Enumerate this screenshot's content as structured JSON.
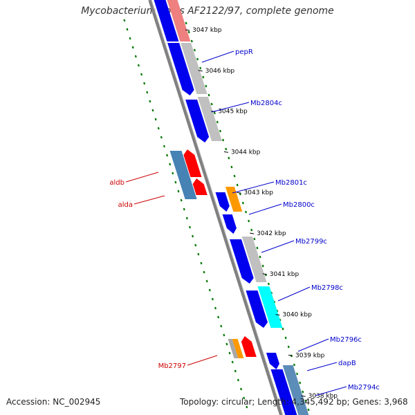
{
  "title": "Mycobacterium bovis AF2122/97, complete genome",
  "footer": {
    "accession": "Accession: NC_002945",
    "topology": "Topology: circular; Length: 4,345,492 bp; Genes: 3,968"
  },
  "ticks": [
    {
      "label": "3047 kbp",
      "kbp": 3047
    },
    {
      "label": "3046 kbp",
      "kbp": 3046
    },
    {
      "label": "3045 kbp",
      "kbp": 3045
    },
    {
      "label": "3044 kbp",
      "kbp": 3044
    },
    {
      "label": "3043 kbp",
      "kbp": 3043
    },
    {
      "label": "3042 kbp",
      "kbp": 3042
    },
    {
      "label": "3041 kbp",
      "kbp": 3041
    },
    {
      "label": "3040 kbp",
      "kbp": 3040
    },
    {
      "label": "3039 kbp",
      "kbp": 3039
    },
    {
      "label": "3038 kbp",
      "kbp": 3038
    }
  ],
  "labels": [
    {
      "text": "pepR",
      "side": "right",
      "color": "#0000cc"
    },
    {
      "text": "Mb2804c",
      "side": "right",
      "color": "#0000cc"
    },
    {
      "text": "aldb",
      "side": "left",
      "color": "#cc0000"
    },
    {
      "text": "alda",
      "side": "left",
      "color": "#cc0000"
    },
    {
      "text": "Mb2801c",
      "side": "right",
      "color": "#0000cc"
    },
    {
      "text": "Mb2800c",
      "side": "right",
      "color": "#0000cc"
    },
    {
      "text": "Mb2799c",
      "side": "right",
      "color": "#0000cc"
    },
    {
      "text": "Mb2798c",
      "side": "right",
      "color": "#0000cc"
    },
    {
      "text": "Mb2797",
      "side": "left",
      "color": "#cc0000"
    },
    {
      "text": "Mb2796c",
      "side": "right",
      "color": "#0000cc"
    },
    {
      "text": "dapB",
      "side": "right",
      "color": "#0000cc"
    },
    {
      "text": "Mb2794c",
      "side": "right",
      "color": "#0000cc"
    }
  ],
  "colors": {
    "forward_cds": "#ff0000",
    "reverse_cds": "#0000ee",
    "forward_rna_blast": "#4682b4",
    "hit_grey": "#c0c0c0",
    "hit_orange": "#ff9900",
    "hit_cyan": "#00ffff",
    "hit_pink": "#ee8080",
    "backbone": "#808080",
    "dotted_track": "#007700"
  }
}
